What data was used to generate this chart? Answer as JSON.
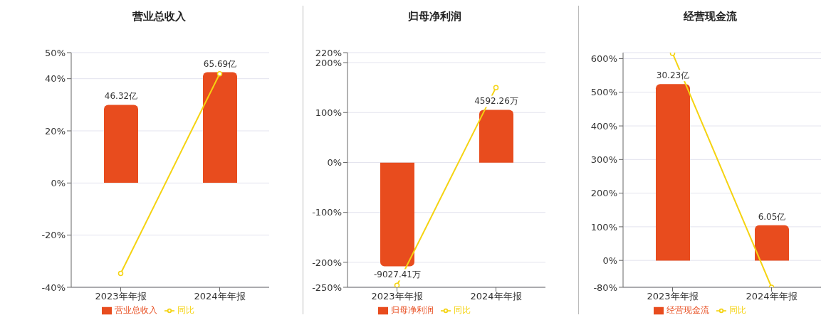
{
  "chart_data": [
    {
      "type": "bar",
      "title": "营业总收入",
      "categories": [
        "2023年年报",
        "2024年年报"
      ],
      "series": [
        {
          "name": "营业总收入",
          "axis": "y2",
          "color": "#e84c1e",
          "values": [
            46.32,
            65.69
          ],
          "value_labels": [
            "46.32亿",
            "65.69亿"
          ]
        },
        {
          "name": "同比",
          "type": "line",
          "color": "#f5d311",
          "values": [
            -34.7,
            41.9
          ]
        }
      ],
      "ylim": [
        -40,
        50
      ],
      "yticks": [
        {
          "value": -40,
          "label": "-40%"
        },
        {
          "value": -20,
          "label": "-20%"
        },
        {
          "value": 0,
          "label": "0%"
        },
        {
          "value": 20,
          "label": "20%"
        },
        {
          "value": 40,
          "label": "40%"
        },
        {
          "value": 50,
          "label": "50%"
        }
      ],
      "y2lim": [
        -62,
        77.3
      ],
      "grid": "y",
      "legend": "bottom",
      "marker": "circle"
    },
    {
      "type": "bar",
      "title": "归母净利润",
      "categories": [
        "2023年年报",
        "2024年年报"
      ],
      "series": [
        {
          "name": "归母净利润",
          "axis": "y2",
          "color": "#e84c1e",
          "values": [
            -9027.41,
            4592.26
          ],
          "value_labels": [
            "-9027.41万",
            "4592.26万"
          ]
        },
        {
          "name": "同比",
          "type": "line",
          "color": "#f5d311",
          "values": [
            -246,
            150
          ]
        }
      ],
      "ylim": [
        -250,
        220
      ],
      "yticks": [
        {
          "value": -250,
          "label": "-250%"
        },
        {
          "value": -200,
          "label": "-200%"
        },
        {
          "value": -100,
          "label": "-100%"
        },
        {
          "value": 0,
          "label": "0%"
        },
        {
          "value": 100,
          "label": "100%"
        },
        {
          "value": 200,
          "label": "200%"
        },
        {
          "value": 220,
          "label": "220%"
        }
      ],
      "y2lim": [
        -10858,
        9577
      ],
      "grid": "y",
      "legend": "bottom",
      "marker": "circle"
    },
    {
      "type": "bar",
      "title": "经营现金流",
      "categories": [
        "2023年年报",
        "2024年年报"
      ],
      "series": [
        {
          "name": "经营现金流",
          "axis": "y2",
          "color": "#e84c1e",
          "values": [
            30.23,
            6.05
          ],
          "value_labels": [
            "30.23亿",
            "6.05亿"
          ]
        },
        {
          "name": "同比",
          "type": "line",
          "color": "#f5d311",
          "values": [
            616,
            -80
          ]
        }
      ],
      "ylim": [
        -80,
        618
      ],
      "yticks": [
        {
          "value": -80,
          "label": "-80%"
        },
        {
          "value": 0,
          "label": "0%"
        },
        {
          "value": 100,
          "label": "100%"
        },
        {
          "value": 200,
          "label": "200%"
        },
        {
          "value": 300,
          "label": "300%"
        },
        {
          "value": 400,
          "label": "400%"
        },
        {
          "value": 500,
          "label": "500%"
        },
        {
          "value": 600,
          "label": "600%"
        }
      ],
      "y2lim": [
        -4.56,
        35.6
      ],
      "grid": "y",
      "legend": "bottom",
      "marker": "circle"
    }
  ]
}
